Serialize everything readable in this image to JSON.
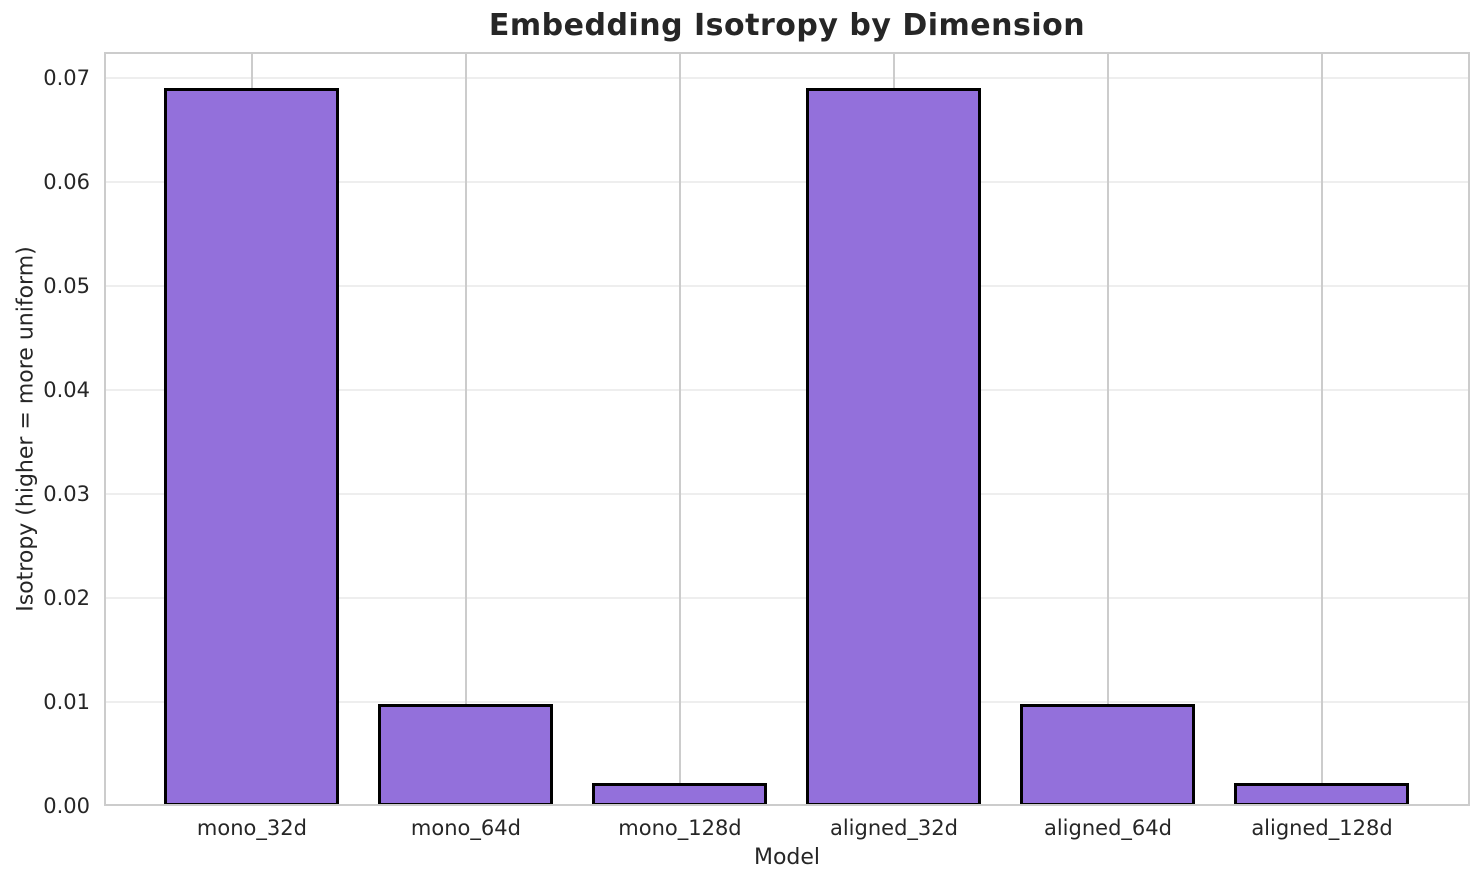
{
  "chart_data": {
    "type": "bar",
    "title": "Embedding Isotropy by Dimension",
    "xlabel": "Model",
    "ylabel": "Isotropy (higher = more uniform)",
    "categories": [
      "mono_32d",
      "mono_64d",
      "mono_128d",
      "aligned_32d",
      "aligned_64d",
      "aligned_128d"
    ],
    "values": [
      0.069,
      0.0098,
      0.0022,
      0.069,
      0.0098,
      0.0022
    ],
    "ylim": [
      0,
      0.0725
    ],
    "yticks": [
      0,
      0.01,
      0.02,
      0.03,
      0.04,
      0.05,
      0.06,
      0.07
    ],
    "ytick_labels": [
      "0.00",
      "0.01",
      "0.02",
      "0.03",
      "0.04",
      "0.05",
      "0.06",
      "0.07"
    ],
    "grid": true,
    "legend": "none",
    "bar_width_frac": 0.82,
    "colors": {
      "bar_fill": "#9370DB",
      "bar_edge": "#000000",
      "axes_border": "#cccccc",
      "grid_vertical": "#cccccc",
      "grid_horizontal": "#eeeeee",
      "text": "#262626",
      "background": "#ffffff"
    }
  }
}
